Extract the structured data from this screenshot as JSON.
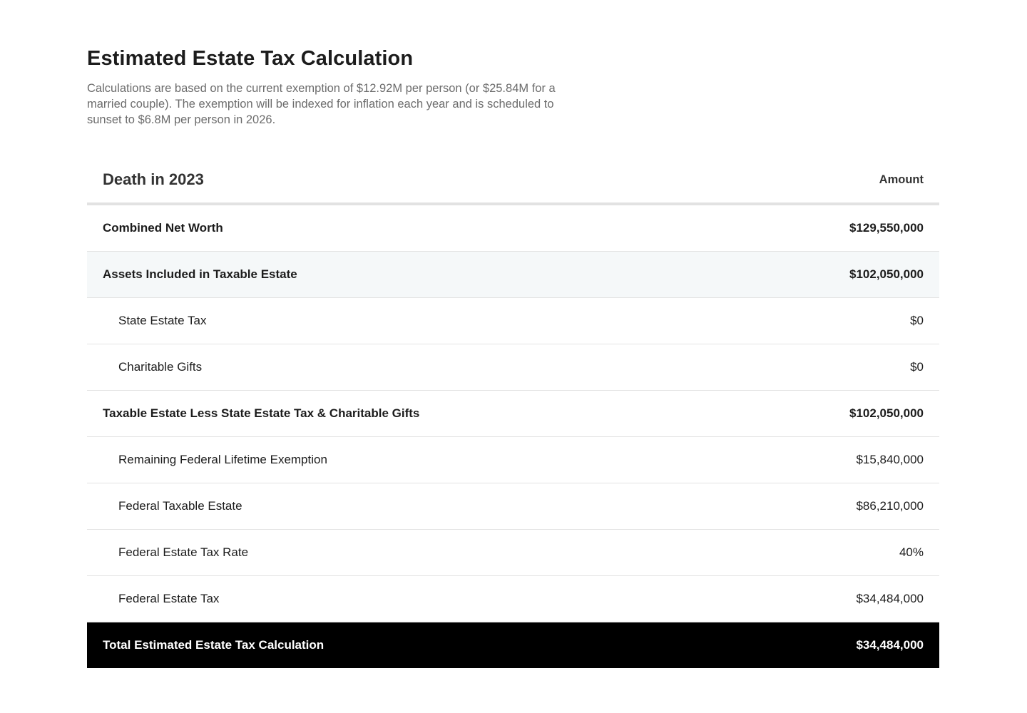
{
  "header": {
    "title": "Estimated Estate Tax Calculation",
    "description": "Calculations are based on the current exemption of $12.92M per person (or $25.84M for a married couple). The exemption will be indexed for inflation each year and is scheduled to sunset to $6.8M per person in 2026."
  },
  "table": {
    "section_title": "Death in 2023",
    "amount_header": "Amount",
    "rows": [
      {
        "label": "Combined Net Worth",
        "amount": "$129,550,000"
      },
      {
        "label": "Assets Included in Taxable Estate",
        "amount": "$102,050,000"
      },
      {
        "label": "State Estate Tax",
        "amount": "$0"
      },
      {
        "label": "Charitable Gifts",
        "amount": "$0"
      },
      {
        "label": "Taxable Estate Less State Estate Tax & Charitable Gifts",
        "amount": "$102,050,000"
      },
      {
        "label": "Remaining Federal Lifetime Exemption",
        "amount": "$15,840,000"
      },
      {
        "label": "Federal Taxable Estate",
        "amount": "$86,210,000"
      },
      {
        "label": "Federal Estate Tax Rate",
        "amount": "40%"
      },
      {
        "label": "Federal Estate Tax",
        "amount": "$34,484,000"
      }
    ],
    "total": {
      "label": "Total Estimated Estate Tax Calculation",
      "amount": "$34,484,000"
    }
  },
  "colors": {
    "total_background": "#000000",
    "tinted_row": "#f5f8f9",
    "divider": "#e3e3e3"
  }
}
